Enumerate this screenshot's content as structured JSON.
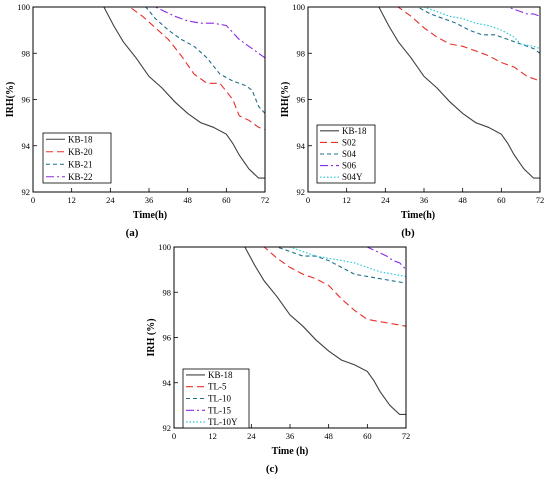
{
  "chart_data": [
    {
      "type": "line",
      "panel_label": "(a)",
      "xlabel": "Time(h)",
      "ylabel": "IRH(%)",
      "xlim": [
        0,
        72
      ],
      "ylim": [
        92,
        100
      ],
      "xticks": [
        0,
        12,
        24,
        36,
        48,
        60,
        72
      ],
      "yticks": [
        92,
        94,
        96,
        98,
        100
      ],
      "legend_position": "bottom-left",
      "series": [
        {
          "name": "KB-18",
          "color": "#404040",
          "dash": "solid",
          "x": [
            0,
            22,
            25,
            28,
            32,
            36,
            40,
            44,
            48,
            52,
            56,
            60,
            62,
            64,
            67,
            70,
            72
          ],
          "y": [
            100,
            100,
            99.2,
            98.5,
            97.8,
            97.0,
            96.5,
            95.9,
            95.4,
            95.0,
            94.8,
            94.5,
            94.1,
            93.6,
            93.0,
            92.6,
            92.6
          ]
        },
        {
          "name": "KB-20",
          "color": "#e8302a",
          "dash": "dashed",
          "x": [
            0,
            30,
            34,
            38,
            42,
            46,
            50,
            54,
            58,
            62,
            64,
            67,
            70,
            72
          ],
          "y": [
            100,
            100,
            99.6,
            99.1,
            98.6,
            97.9,
            97.1,
            96.7,
            96.7,
            96.0,
            95.3,
            95.1,
            94.8,
            94.7
          ]
        },
        {
          "name": "KB-21",
          "color": "#1f6f8b",
          "dash": "shortdash",
          "x": [
            0,
            35,
            38,
            42,
            46,
            50,
            54,
            58,
            62,
            66,
            68,
            70,
            72
          ],
          "y": [
            100,
            100,
            99.5,
            99.0,
            98.6,
            98.3,
            97.8,
            97.1,
            96.8,
            96.6,
            96.4,
            95.7,
            95.4
          ]
        },
        {
          "name": "KB-22",
          "color": "#8a2be2",
          "dash": "dashdot",
          "x": [
            0,
            38,
            44,
            48,
            52,
            56,
            60,
            64,
            68,
            72
          ],
          "y": [
            100,
            100,
            99.6,
            99.4,
            99.3,
            99.3,
            99.2,
            98.6,
            98.2,
            97.8
          ]
        }
      ]
    },
    {
      "type": "line",
      "panel_label": "(b)",
      "xlabel": "Time(h)",
      "ylabel": "IRH(%)",
      "xlim": [
        0,
        72
      ],
      "ylim": [
        92,
        100
      ],
      "xticks": [
        0,
        12,
        24,
        36,
        48,
        60,
        72
      ],
      "yticks": [
        92,
        94,
        96,
        98,
        100
      ],
      "legend_position": "bottom-left",
      "series": [
        {
          "name": "KB-18",
          "color": "#404040",
          "dash": "solid",
          "x": [
            0,
            22,
            25,
            28,
            32,
            36,
            40,
            44,
            48,
            52,
            56,
            60,
            62,
            64,
            67,
            70,
            72
          ],
          "y": [
            100,
            100,
            99.2,
            98.5,
            97.8,
            97.0,
            96.5,
            95.9,
            95.4,
            95.0,
            94.8,
            94.5,
            94.1,
            93.6,
            93.0,
            92.6,
            92.6
          ]
        },
        {
          "name": "S02",
          "color": "#e8302a",
          "dash": "dashed",
          "x": [
            0,
            28,
            32,
            36,
            40,
            44,
            48,
            52,
            56,
            60,
            64,
            68,
            72
          ],
          "y": [
            100,
            100,
            99.6,
            99.1,
            98.7,
            98.4,
            98.3,
            98.1,
            97.9,
            97.6,
            97.4,
            97.0,
            96.8
          ]
        },
        {
          "name": "S04",
          "color": "#1f6f8b",
          "dash": "shortdash",
          "x": [
            0,
            34,
            38,
            42,
            46,
            50,
            54,
            58,
            62,
            66,
            70,
            72
          ],
          "y": [
            100,
            100,
            99.7,
            99.5,
            99.3,
            99.0,
            98.8,
            98.8,
            98.6,
            98.4,
            98.2,
            98.0
          ]
        },
        {
          "name": "S06",
          "color": "#8a2be2",
          "dash": "dashdot",
          "x": [
            0,
            62,
            64,
            66,
            68,
            70,
            72
          ],
          "y": [
            100,
            100,
            99.9,
            99.8,
            99.7,
            99.7,
            99.6
          ]
        },
        {
          "name": "S04Y",
          "color": "#17c7d6",
          "dash": "dotted",
          "x": [
            0,
            36,
            40,
            44,
            48,
            52,
            56,
            60,
            64,
            66,
            70,
            72
          ],
          "y": [
            100,
            100,
            99.8,
            99.6,
            99.5,
            99.3,
            99.2,
            99.0,
            98.7,
            98.4,
            98.3,
            98.2
          ]
        }
      ]
    },
    {
      "type": "line",
      "panel_label": "(c)",
      "xlabel": "Time (h)",
      "ylabel": "IRH (%)",
      "xlim": [
        0,
        72
      ],
      "ylim": [
        92,
        100
      ],
      "xticks": [
        0,
        12,
        24,
        36,
        48,
        60,
        72
      ],
      "yticks": [
        92,
        94,
        96,
        98,
        100
      ],
      "legend_position": "bottom-left",
      "series": [
        {
          "name": "KB-18",
          "color": "#404040",
          "dash": "solid",
          "x": [
            0,
            22,
            25,
            28,
            32,
            36,
            40,
            44,
            48,
            52,
            56,
            60,
            62,
            64,
            67,
            70,
            72
          ],
          "y": [
            100,
            100,
            99.2,
            98.5,
            97.8,
            97.0,
            96.5,
            95.9,
            95.4,
            95.0,
            94.8,
            94.5,
            94.1,
            93.6,
            93.0,
            92.6,
            92.6
          ]
        },
        {
          "name": "TL-5",
          "color": "#e8302a",
          "dash": "dashed",
          "x": [
            0,
            28,
            32,
            36,
            40,
            44,
            48,
            52,
            56,
            60,
            64,
            68,
            72
          ],
          "y": [
            100,
            100,
            99.5,
            99.1,
            98.8,
            98.6,
            98.3,
            97.7,
            97.2,
            96.8,
            96.7,
            96.6,
            96.5
          ]
        },
        {
          "name": "TL-10",
          "color": "#1f6f8b",
          "dash": "shortdash",
          "x": [
            0,
            32,
            36,
            40,
            44,
            48,
            52,
            56,
            60,
            64,
            68,
            72
          ],
          "y": [
            100,
            100,
            99.8,
            99.6,
            99.6,
            99.4,
            99.1,
            98.8,
            98.7,
            98.6,
            98.5,
            98.4
          ]
        },
        {
          "name": "TL-15",
          "color": "#8a2be2",
          "dash": "dashdot",
          "x": [
            0,
            60,
            63,
            66,
            68,
            70,
            72
          ],
          "y": [
            100,
            100,
            99.8,
            99.6,
            99.4,
            99.3,
            99.0
          ]
        },
        {
          "name": "TL-10Y",
          "color": "#17c7d6",
          "dash": "dotted",
          "x": [
            0,
            36,
            40,
            44,
            48,
            52,
            56,
            60,
            64,
            68,
            72
          ],
          "y": [
            100,
            100,
            99.8,
            99.6,
            99.5,
            99.4,
            99.3,
            99.1,
            98.9,
            98.8,
            98.7
          ]
        }
      ]
    }
  ]
}
